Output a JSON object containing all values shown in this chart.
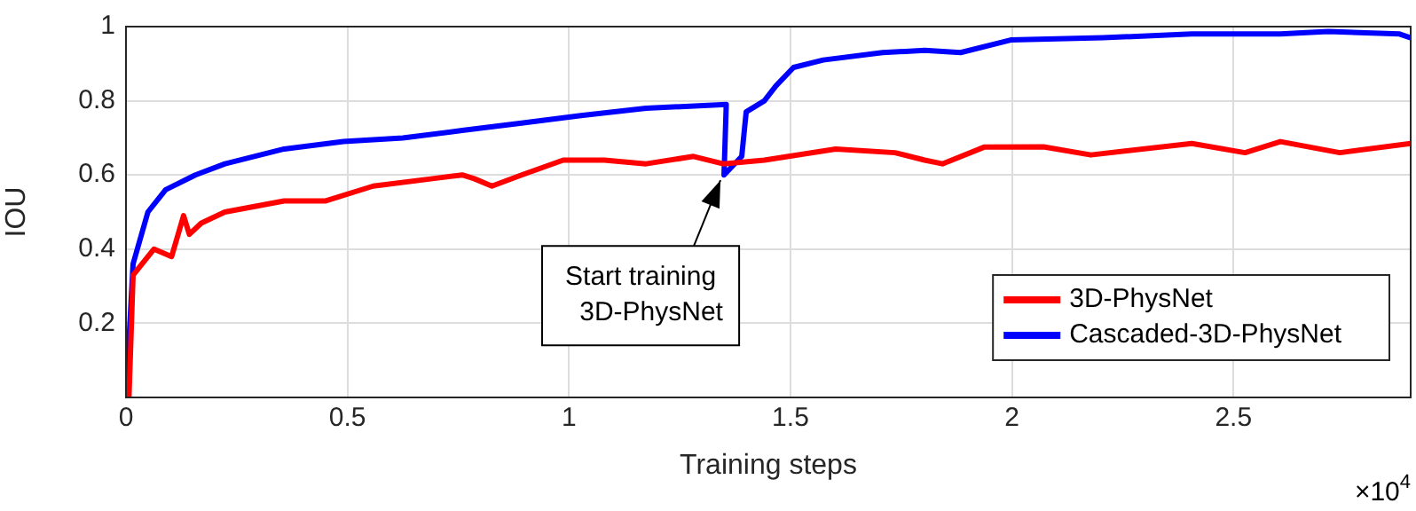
{
  "chart_data": {
    "type": "line",
    "xlabel": "Training steps",
    "ylabel": "IOU",
    "xlim": [
      0,
      2.9
    ],
    "ylim": [
      0,
      1
    ],
    "xticks": [
      0,
      0.5,
      1,
      1.5,
      2,
      2.5
    ],
    "yticks": [
      0.2,
      0.4,
      0.6,
      0.8,
      1
    ],
    "grid": true,
    "legend": "bottom right",
    "annotations": [
      {
        "text": "Start training\n3D-PhysNet",
        "x": 1.35,
        "y": 0.6
      },
      "×10$^{4}$"
    ],
    "series": [
      {
        "name": "3D-PhysNet",
        "color": "#ff0000",
        "x": [
          0.0067,
          0.016,
          0.036,
          0.063,
          0.103,
          0.13,
          0.143,
          0.17,
          0.223,
          0.357,
          0.451,
          0.558,
          0.692,
          0.759,
          0.786,
          0.826,
          0.893,
          0.987,
          1.08,
          1.174,
          1.281,
          1.348,
          1.441,
          1.602,
          1.736,
          1.803,
          1.843,
          1.937,
          2.071,
          2.178,
          2.406,
          2.526,
          2.606,
          2.74,
          2.9
        ],
        "values": [
          0,
          0.33,
          0.36,
          0.4,
          0.38,
          0.49,
          0.44,
          0.47,
          0.5,
          0.53,
          0.53,
          0.57,
          0.59,
          0.6,
          0.59,
          0.57,
          0.6,
          0.64,
          0.64,
          0.63,
          0.65,
          0.63,
          0.64,
          0.67,
          0.66,
          0.64,
          0.63,
          0.675,
          0.676,
          0.654,
          0.685,
          0.66,
          0.69,
          0.66,
          0.685
        ]
      },
      {
        "name": "Cascaded-3D-PhysNet",
        "color": "#0000ff",
        "x": [
          0,
          0.016,
          0.0495,
          0.0895,
          0.1566,
          0.2235,
          0.357,
          0.491,
          0.625,
          0.759,
          0.893,
          1.027,
          1.174,
          1.355,
          1.35,
          1.39,
          1.4,
          1.441,
          1.467,
          1.507,
          1.574,
          1.708,
          1.803,
          1.884,
          1.997,
          2.205,
          2.406,
          2.606,
          2.714,
          2.875,
          2.9
        ],
        "values": [
          0,
          0.36,
          0.5,
          0.56,
          0.6,
          0.63,
          0.67,
          0.69,
          0.7,
          0.72,
          0.74,
          0.76,
          0.78,
          0.79,
          0.6,
          0.65,
          0.77,
          0.8,
          0.84,
          0.89,
          0.91,
          0.93,
          0.936,
          0.93,
          0.964,
          0.97,
          0.98,
          0.98,
          0.987,
          0.98,
          0.97
        ]
      }
    ]
  }
}
